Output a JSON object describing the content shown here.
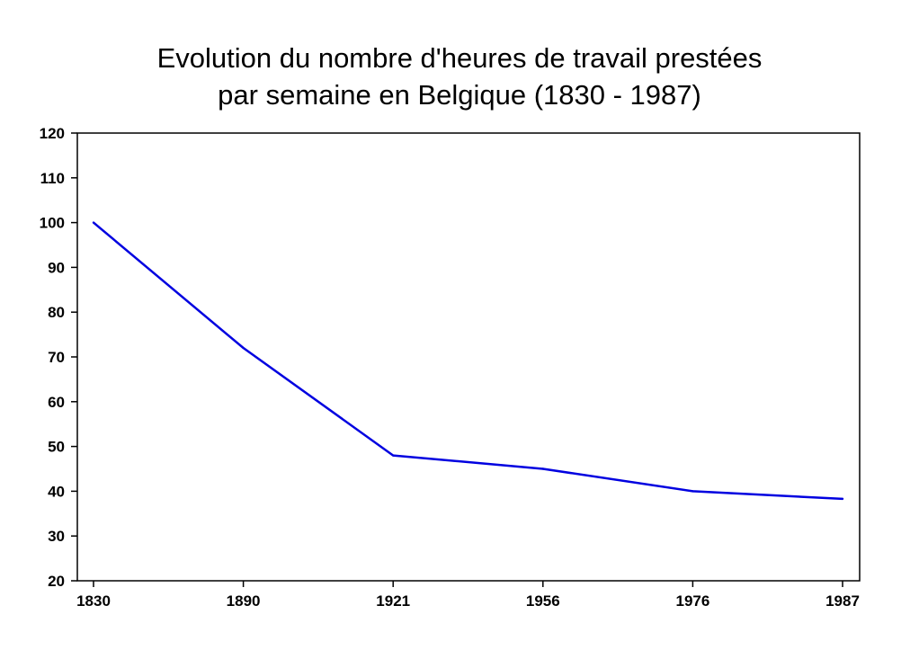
{
  "chart_data": {
    "type": "line",
    "title_lines": [
      "Evolution du nombre d'heures de travail prestées",
      "par semaine en Belgique (1830 - 1987)"
    ],
    "xlabel": "",
    "ylabel": "",
    "categories": [
      "1830",
      "1890",
      "1921",
      "1956",
      "1976",
      "1987"
    ],
    "series": [
      {
        "values": [
          100,
          72,
          48,
          45,
          40,
          38.3
        ],
        "color": "#0000e0"
      }
    ],
    "ylim": [
      20,
      120
    ],
    "yticks": [
      "20",
      "30",
      "40",
      "50",
      "60",
      "70",
      "80",
      "90",
      "100",
      "110",
      "120"
    ],
    "grid": false,
    "legend": "none"
  }
}
